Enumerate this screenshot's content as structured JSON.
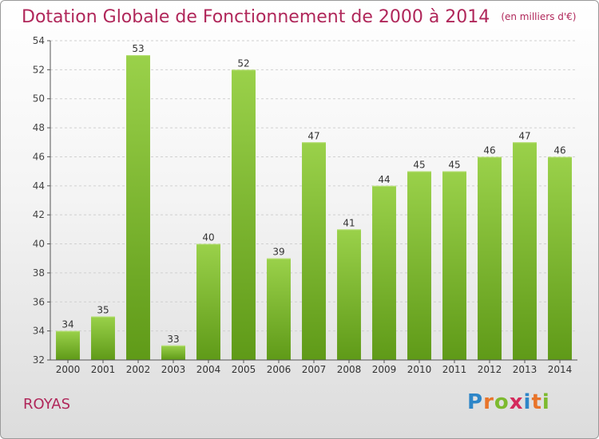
{
  "title": "Dotation Globale de Fonctionnement de 2000 à 2014",
  "unit": "(en milliers d'€)",
  "commune": "ROYAS",
  "logo": {
    "text": "Proxiti",
    "letters": [
      "P",
      "r",
      "o",
      "x",
      "i",
      "t",
      "i"
    ],
    "colors": [
      "#2e86c8",
      "#e8742a",
      "#7dba2f",
      "#d42a5c",
      "#2e86c8",
      "#e8742a",
      "#7dba2f"
    ]
  },
  "chart_data": {
    "type": "bar",
    "categories": [
      "2000",
      "2001",
      "2002",
      "2003",
      "2004",
      "2005",
      "2006",
      "2007",
      "2008",
      "2009",
      "2010",
      "2011",
      "2012",
      "2013",
      "2014"
    ],
    "values": [
      34,
      35,
      53,
      33,
      40,
      52,
      39,
      47,
      41,
      44,
      45,
      45,
      46,
      47,
      46
    ],
    "ylim": [
      32,
      54
    ],
    "yticks": [
      32,
      34,
      36,
      38,
      40,
      42,
      44,
      46,
      48,
      50,
      52,
      54
    ],
    "grid": true,
    "bar_color": "#7dba2f"
  }
}
